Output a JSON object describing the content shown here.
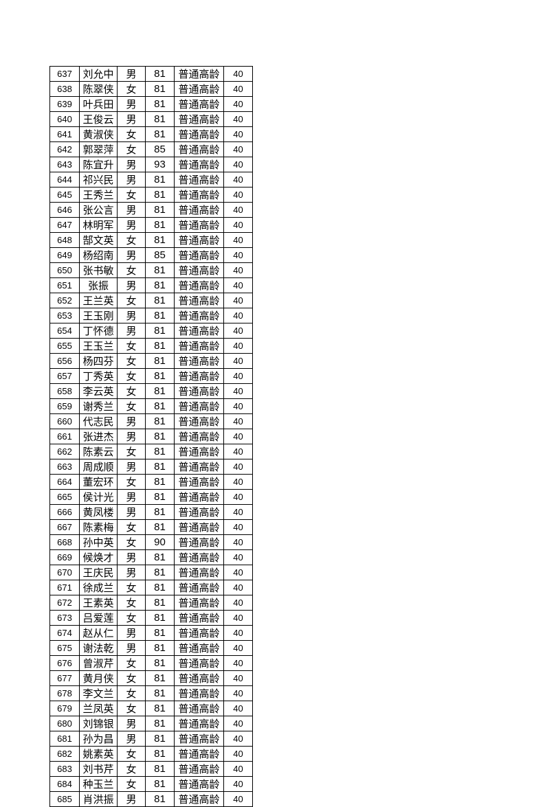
{
  "table": {
    "rows": [
      [
        "637",
        "刘允中",
        "男",
        "81",
        "普通高龄",
        "40"
      ],
      [
        "638",
        "陈翠侠",
        "女",
        "81",
        "普通高龄",
        "40"
      ],
      [
        "639",
        "叶兵田",
        "男",
        "81",
        "普通高龄",
        "40"
      ],
      [
        "640",
        "王俊云",
        "男",
        "81",
        "普通高龄",
        "40"
      ],
      [
        "641",
        "黄淑侠",
        "女",
        "81",
        "普通高龄",
        "40"
      ],
      [
        "642",
        "郭翠萍",
        "女",
        "85",
        "普通高龄",
        "40"
      ],
      [
        "643",
        "陈宜升",
        "男",
        "93",
        "普通高龄",
        "40"
      ],
      [
        "644",
        "祁兴民",
        "男",
        "81",
        "普通高龄",
        "40"
      ],
      [
        "645",
        "王秀兰",
        "女",
        "81",
        "普通高龄",
        "40"
      ],
      [
        "646",
        "张公言",
        "男",
        "81",
        "普通高龄",
        "40"
      ],
      [
        "647",
        "林明军",
        "男",
        "81",
        "普通高龄",
        "40"
      ],
      [
        "648",
        "郜文英",
        "女",
        "81",
        "普通高龄",
        "40"
      ],
      [
        "649",
        "杨绍南",
        "男",
        "85",
        "普通高龄",
        "40"
      ],
      [
        "650",
        "张书敏",
        "女",
        "81",
        "普通高龄",
        "40"
      ],
      [
        "651",
        "张振",
        "男",
        "81",
        "普通高龄",
        "40"
      ],
      [
        "652",
        "王兰英",
        "女",
        "81",
        "普通高龄",
        "40"
      ],
      [
        "653",
        "王玉刚",
        "男",
        "81",
        "普通高龄",
        "40"
      ],
      [
        "654",
        "丁怀德",
        "男",
        "81",
        "普通高龄",
        "40"
      ],
      [
        "655",
        "王玉兰",
        "女",
        "81",
        "普通高龄",
        "40"
      ],
      [
        "656",
        "杨四芬",
        "女",
        "81",
        "普通高龄",
        "40"
      ],
      [
        "657",
        "丁秀英",
        "女",
        "81",
        "普通高龄",
        "40"
      ],
      [
        "658",
        "李云英",
        "女",
        "81",
        "普通高龄",
        "40"
      ],
      [
        "659",
        "谢秀兰",
        "女",
        "81",
        "普通高龄",
        "40"
      ],
      [
        "660",
        "代志民",
        "男",
        "81",
        "普通高龄",
        "40"
      ],
      [
        "661",
        "张进杰",
        "男",
        "81",
        "普通高龄",
        "40"
      ],
      [
        "662",
        "陈素云",
        "女",
        "81",
        "普通高龄",
        "40"
      ],
      [
        "663",
        "周成顺",
        "男",
        "81",
        "普通高龄",
        "40"
      ],
      [
        "664",
        "董宏环",
        "女",
        "81",
        "普通高龄",
        "40"
      ],
      [
        "665",
        "侯计光",
        "男",
        "81",
        "普通高龄",
        "40"
      ],
      [
        "666",
        "黄凤楼",
        "男",
        "81",
        "普通高龄",
        "40"
      ],
      [
        "667",
        "陈素梅",
        "女",
        "81",
        "普通高龄",
        "40"
      ],
      [
        "668",
        "孙中英",
        "女",
        "90",
        "普通高龄",
        "40"
      ],
      [
        "669",
        "候焕才",
        "男",
        "81",
        "普通高龄",
        "40"
      ],
      [
        "670",
        "王庆民",
        "男",
        "81",
        "普通高龄",
        "40"
      ],
      [
        "671",
        "徐成兰",
        "女",
        "81",
        "普通高龄",
        "40"
      ],
      [
        "672",
        "王素英",
        "女",
        "81",
        "普通高龄",
        "40"
      ],
      [
        "673",
        "吕爱莲",
        "女",
        "81",
        "普通高龄",
        "40"
      ],
      [
        "674",
        "赵从仁",
        "男",
        "81",
        "普通高龄",
        "40"
      ],
      [
        "675",
        "谢法乾",
        "男",
        "81",
        "普通高龄",
        "40"
      ],
      [
        "676",
        "曾淑芹",
        "女",
        "81",
        "普通高龄",
        "40"
      ],
      [
        "677",
        "黄月侠",
        "女",
        "81",
        "普通高龄",
        "40"
      ],
      [
        "678",
        "李文兰",
        "女",
        "81",
        "普通高龄",
        "40"
      ],
      [
        "679",
        "兰凤英",
        "女",
        "81",
        "普通高龄",
        "40"
      ],
      [
        "680",
        "刘锦银",
        "男",
        "81",
        "普通高龄",
        "40"
      ],
      [
        "681",
        "孙为昌",
        "男",
        "81",
        "普通高龄",
        "40"
      ],
      [
        "682",
        "姚素英",
        "女",
        "81",
        "普通高龄",
        "40"
      ],
      [
        "683",
        "刘书芹",
        "女",
        "81",
        "普通高龄",
        "40"
      ],
      [
        "684",
        "种玉兰",
        "女",
        "81",
        "普通高龄",
        "40"
      ],
      [
        "685",
        "肖洪振",
        "男",
        "81",
        "普通高龄",
        "40"
      ]
    ]
  }
}
